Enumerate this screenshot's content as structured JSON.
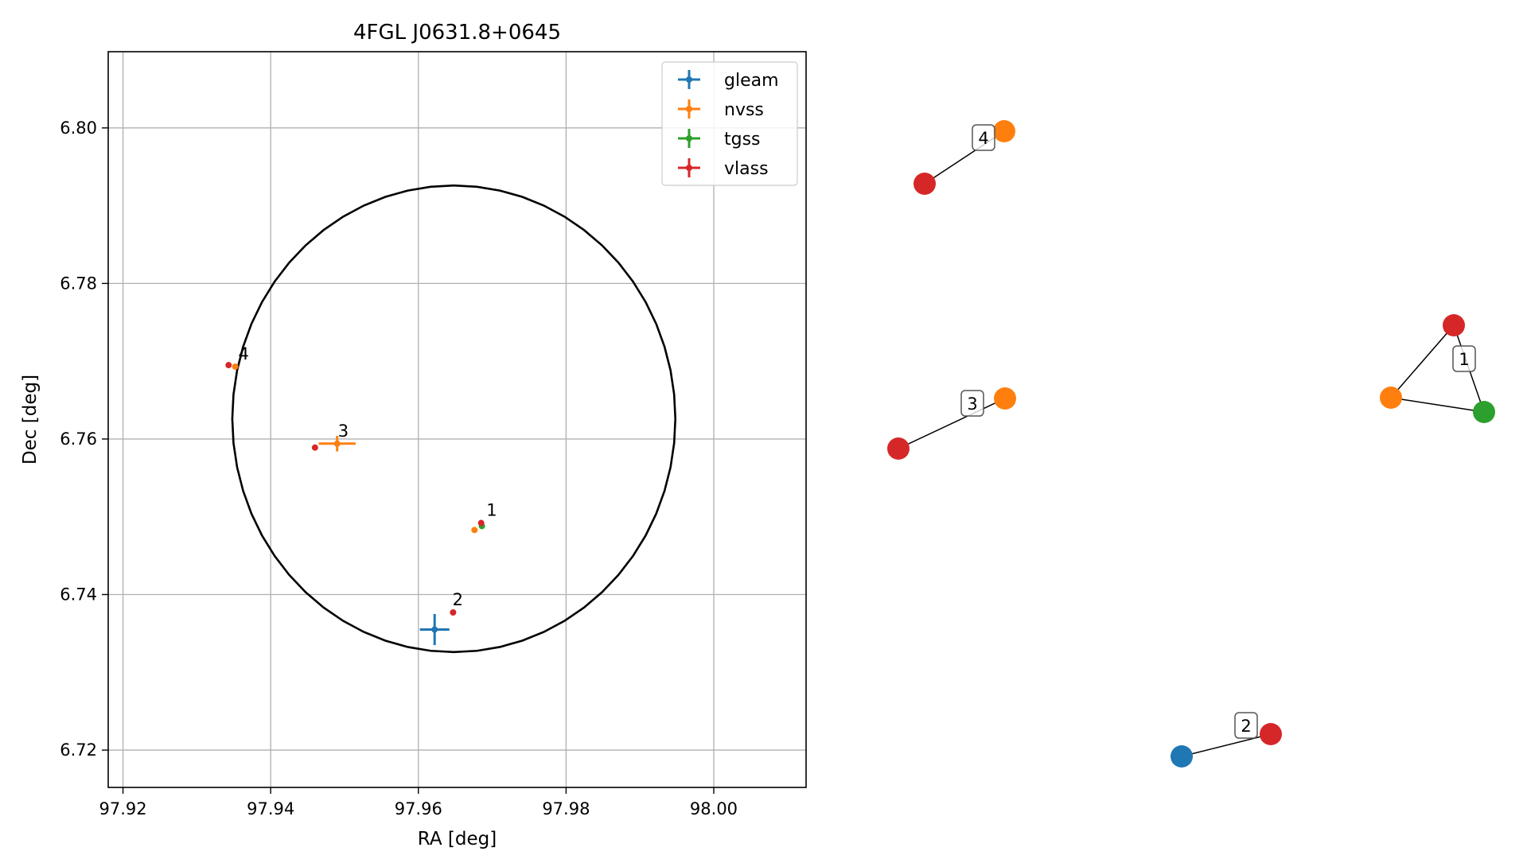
{
  "chart_data": [
    {
      "type": "scatter",
      "title": "4FGL J0631.8+0645",
      "xlabel": "RA [deg]",
      "ylabel": "Dec [deg]",
      "xlim": [
        97.918,
        98.0125
      ],
      "ylim": [
        6.7152,
        6.8098
      ],
      "xticks": [
        97.92,
        97.94,
        97.96,
        97.98,
        98.0
      ],
      "xtick_labels": [
        "97.92",
        "97.94",
        "97.96",
        "97.98",
        "98.00"
      ],
      "yticks": [
        6.72,
        6.74,
        6.76,
        6.78,
        6.8
      ],
      "ytick_labels": [
        "6.72",
        "6.74",
        "6.76",
        "6.78",
        "6.80"
      ],
      "grid": true,
      "legend_position": "top-right",
      "circle": {
        "center_ra": 97.9648,
        "center_dec": 6.7626,
        "radius_deg": 0.03
      },
      "series": [
        {
          "name": "gleam",
          "color": "#1f77b4",
          "points": [
            {
              "ra": 97.9622,
              "dec": 6.7355,
              "ra_err": 0.002,
              "dec_err": 0.002
            }
          ]
        },
        {
          "name": "nvss",
          "color": "#ff7f0e",
          "points": [
            {
              "ra": 97.949,
              "dec": 6.7594,
              "ra_err": 0.0025,
              "dec_err": 0.001
            },
            {
              "ra": 97.9676,
              "dec": 6.7483,
              "ra_err": 0.0,
              "dec_err": 0.0
            },
            {
              "ra": 97.9352,
              "dec": 6.7693,
              "ra_err": 0.0,
              "dec_err": 0.0
            }
          ]
        },
        {
          "name": "tgss",
          "color": "#2ca02c",
          "points": [
            {
              "ra": 97.9686,
              "dec": 6.7488,
              "ra_err": 0.0,
              "dec_err": 0.0
            }
          ]
        },
        {
          "name": "vlass",
          "color": "#d62728",
          "points": [
            {
              "ra": 97.9685,
              "dec": 6.7492,
              "ra_err": 0.0,
              "dec_err": 0.0
            },
            {
              "ra": 97.9647,
              "dec": 6.7377,
              "ra_err": 0.0,
              "dec_err": 0.0
            },
            {
              "ra": 97.946,
              "dec": 6.7589,
              "ra_err": 0.0,
              "dec_err": 0.0
            },
            {
              "ra": 97.9343,
              "dec": 6.7695,
              "ra_err": 0.0,
              "dec_err": 0.0
            }
          ]
        }
      ],
      "annotations": [
        {
          "text": "1",
          "ra": 97.969,
          "dec": 6.7495
        },
        {
          "text": "2",
          "ra": 97.9644,
          "dec": 6.738
        },
        {
          "text": "3",
          "ra": 97.9489,
          "dec": 6.7597
        },
        {
          "text": "4",
          "ra": 97.9354,
          "dec": 6.7696
        }
      ]
    },
    {
      "type": "network",
      "node_colors": {
        "gleam": "#1f77b4",
        "nvss": "#ff7f0e",
        "tgss": "#2ca02c",
        "vlass": "#d62728"
      },
      "groups": [
        {
          "label": "4",
          "nodes": [
            "vlass",
            "nvss"
          ],
          "edges": [
            [
              0,
              1
            ]
          ]
        },
        {
          "label": "1",
          "nodes": [
            "vlass",
            "nvss",
            "tgss"
          ],
          "edges": [
            [
              0,
              1
            ],
            [
              1,
              2
            ],
            [
              2,
              0
            ]
          ]
        },
        {
          "label": "3",
          "nodes": [
            "vlass",
            "nvss"
          ],
          "edges": [
            [
              0,
              1
            ]
          ]
        },
        {
          "label": "2",
          "nodes": [
            "gleam",
            "vlass"
          ],
          "edges": [
            [
              0,
              1
            ]
          ]
        }
      ]
    }
  ]
}
